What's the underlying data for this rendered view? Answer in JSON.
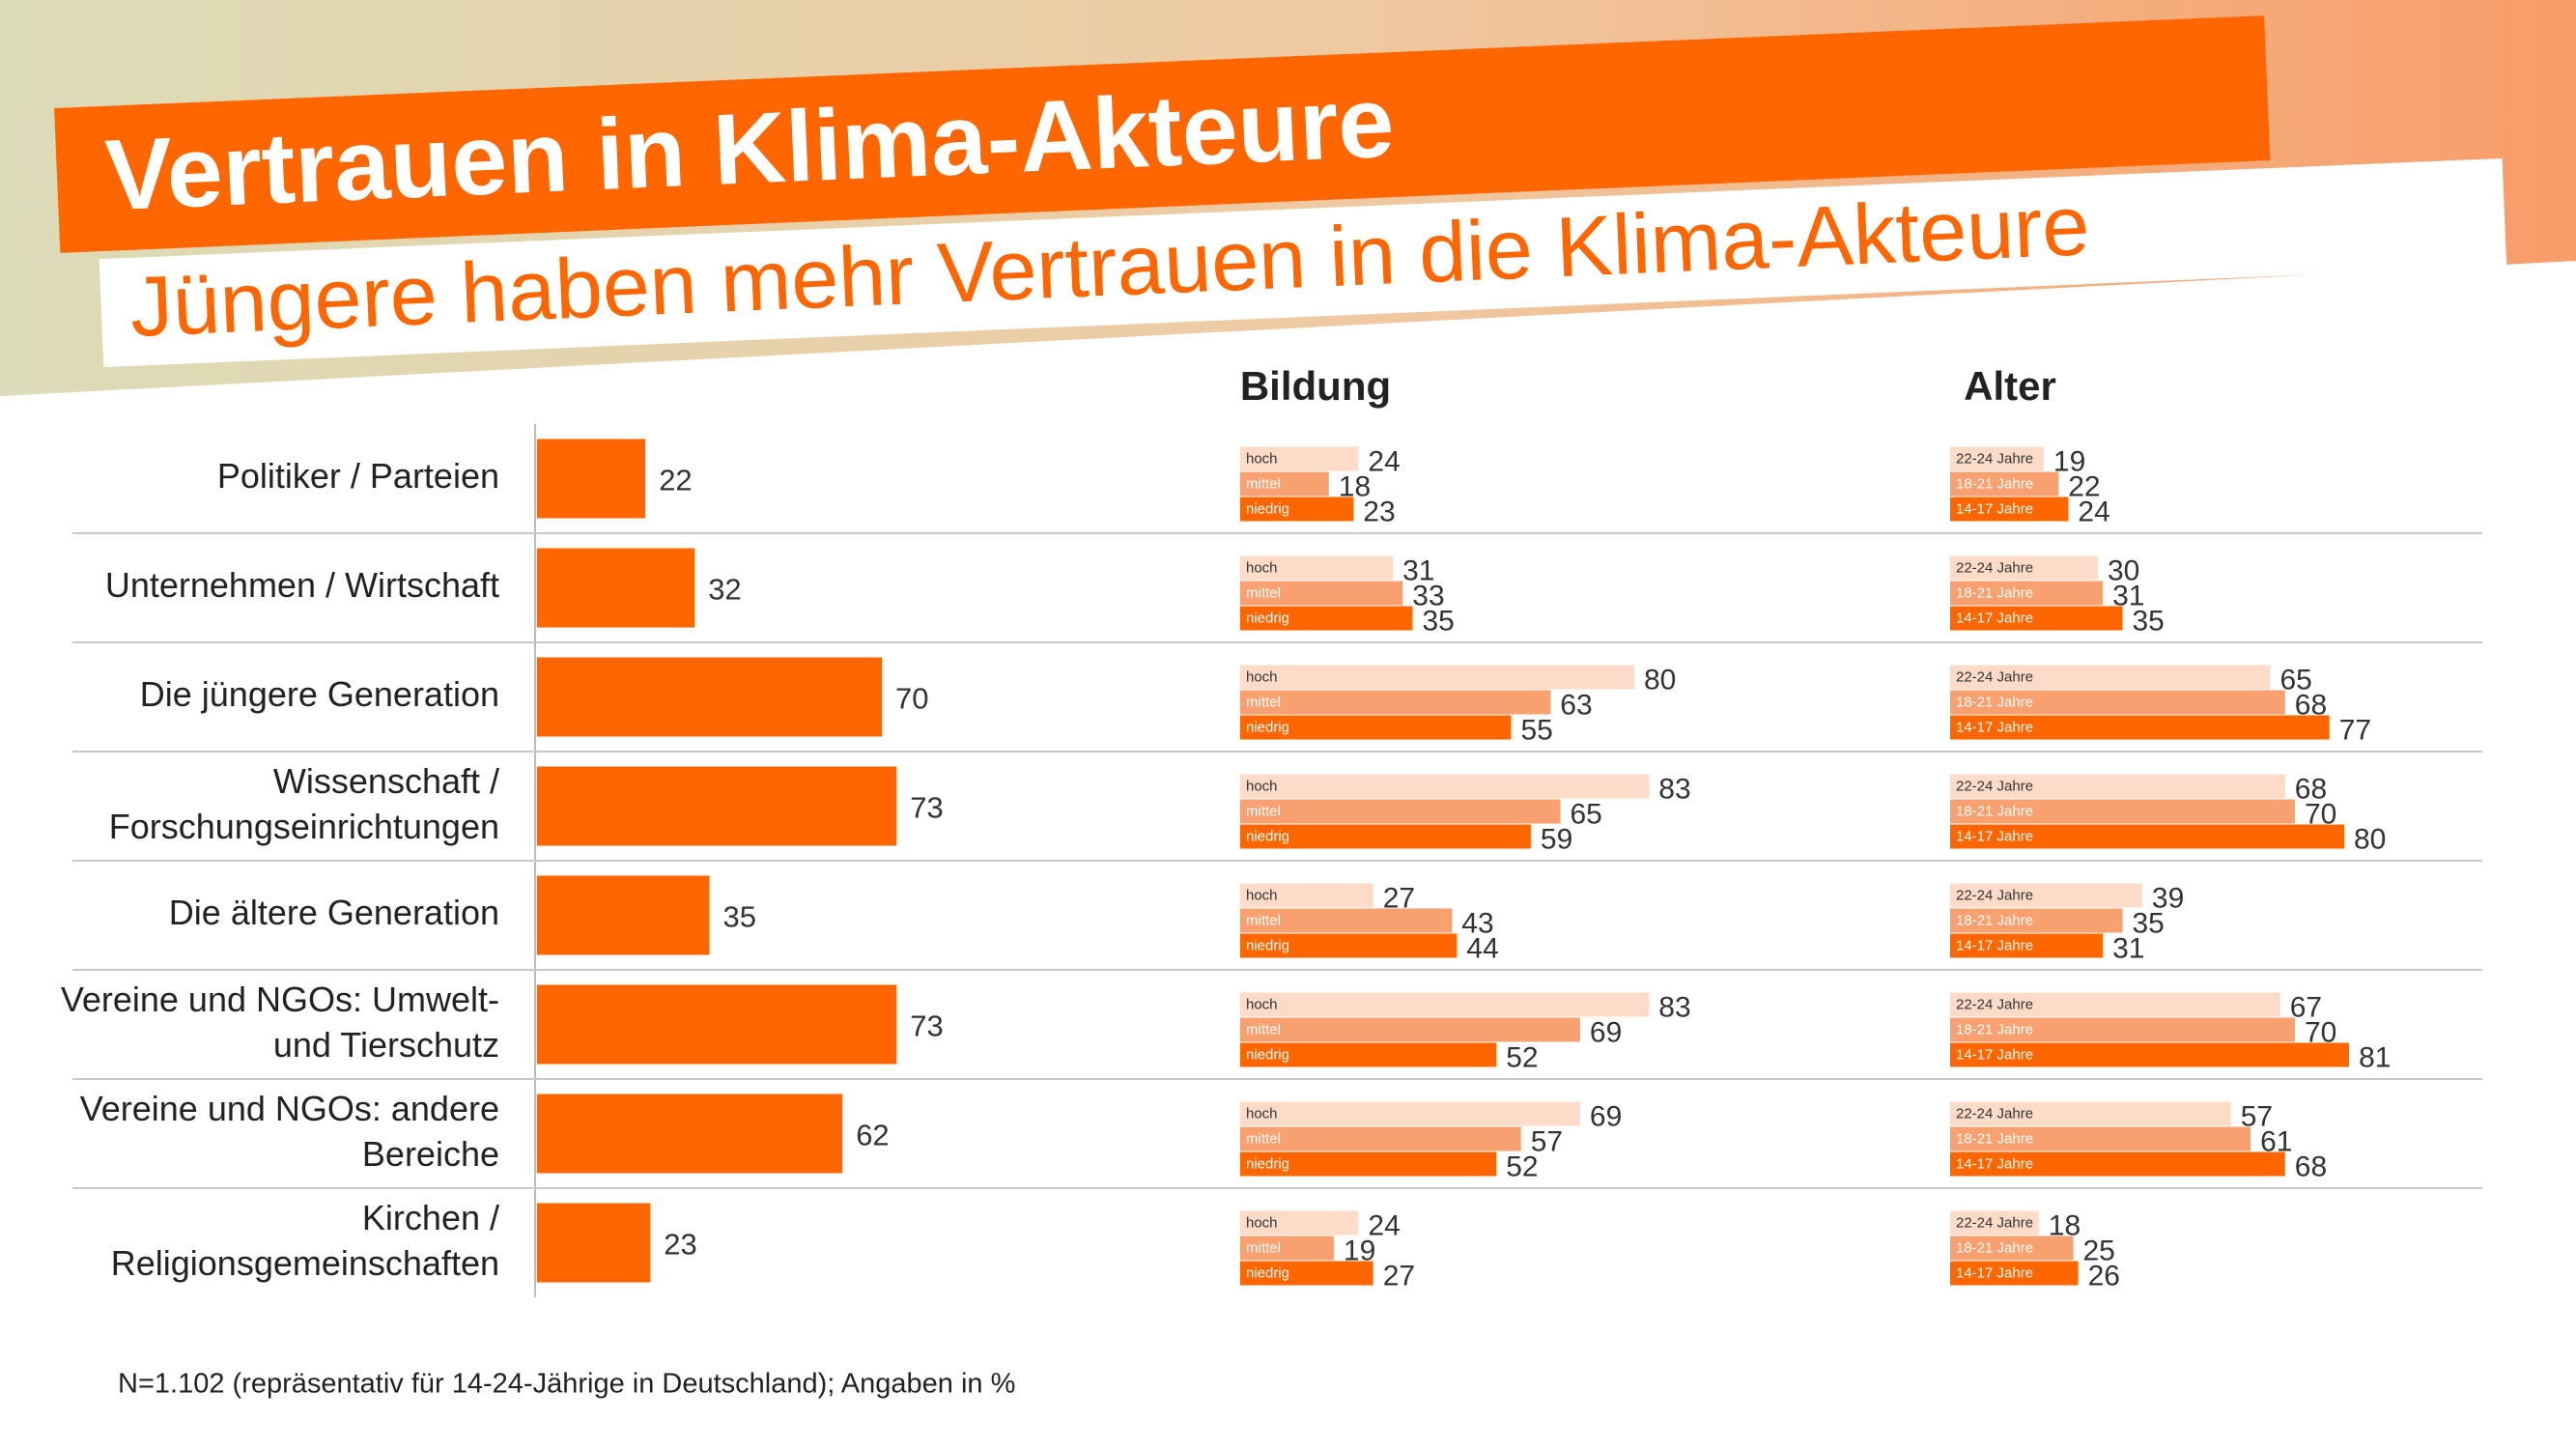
{
  "title": "Vertrauen in Klima-Akteure",
  "subtitle": "Jüngere haben mehr Vertrauen in die Klima-Akteure",
  "footnote": "N=1.102 (repräsentativ für 14-24-Jährige in Deutschland); Angaben in %",
  "chart_data": [
    {
      "type": "bar",
      "orientation": "horizontal",
      "color": "#ff6600",
      "categories": [
        "Politiker / Parteien",
        "Unternehmen / Wirtschaft",
        "Die jüngere Generation",
        "Wissenschaft /\nForschungseinrichtungen",
        "Die ältere Generation",
        "Vereine und NGOs: Umwelt-\nund Tierschutz",
        "Vereine und NGOs: andere\nBereiche",
        "Kirchen /\nReligionsgemeinschaften"
      ],
      "values": [
        22,
        32,
        70,
        73,
        35,
        73,
        62,
        23
      ]
    },
    {
      "type": "grouped-bar",
      "orientation": "horizontal",
      "title": "Bildung",
      "series": [
        {
          "name": "hoch",
          "color": "#fcdcc8",
          "values": [
            24,
            31,
            80,
            83,
            27,
            83,
            69,
            24
          ]
        },
        {
          "name": "mittel",
          "color": "#f9a070",
          "values": [
            18,
            33,
            63,
            65,
            43,
            69,
            57,
            19
          ]
        },
        {
          "name": "niedrig",
          "color": "#ff6600",
          "values": [
            23,
            35,
            55,
            59,
            44,
            52,
            52,
            27
          ]
        }
      ]
    },
    {
      "type": "grouped-bar",
      "orientation": "horizontal",
      "title": "Alter",
      "series": [
        {
          "name": "22-24 Jahre",
          "color": "#fcdcc8",
          "values": [
            19,
            30,
            65,
            68,
            39,
            67,
            57,
            18
          ]
        },
        {
          "name": "18-21 Jahre",
          "color": "#f9a070",
          "values": [
            22,
            31,
            68,
            70,
            35,
            70,
            61,
            25
          ]
        },
        {
          "name": "14-17 Jahre",
          "color": "#ff6600",
          "values": [
            24,
            35,
            77,
            80,
            31,
            81,
            68,
            26
          ]
        }
      ]
    }
  ]
}
